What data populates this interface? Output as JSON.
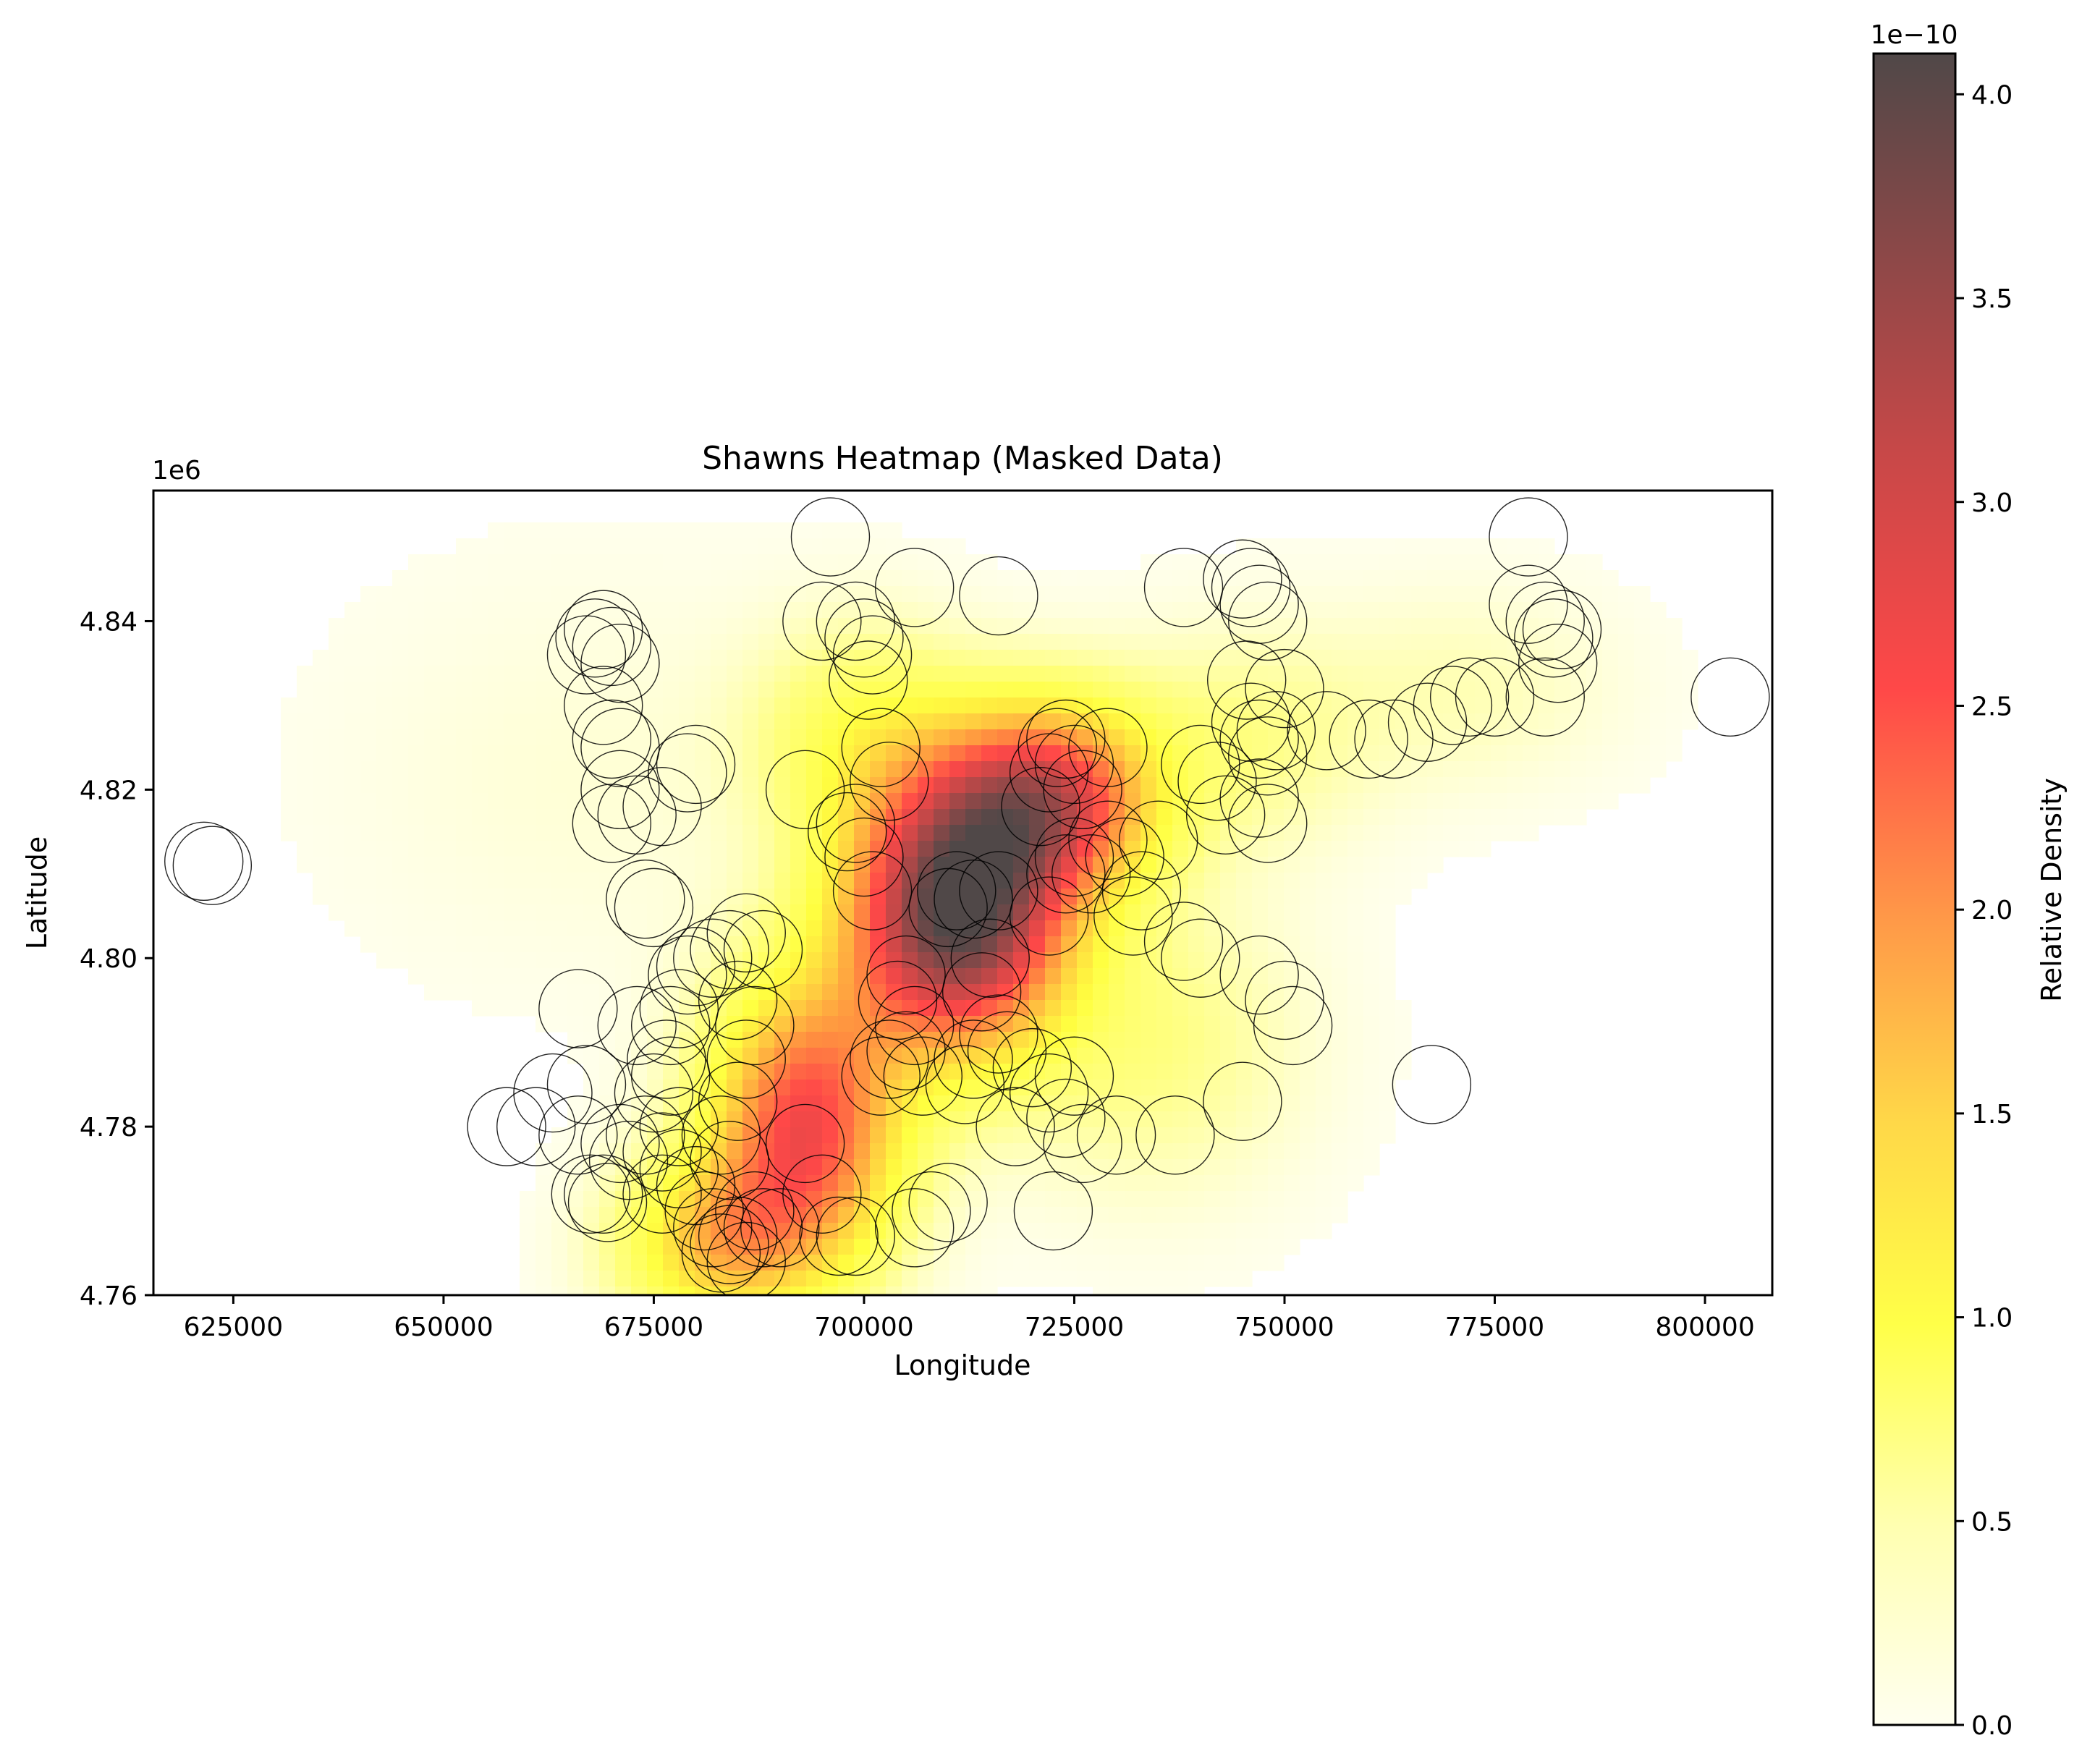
{
  "chart_data": {
    "type": "heatmap",
    "title": "Shawns Heatmap (Masked Data)",
    "xlabel": "Longitude",
    "ylabel": "Latitude",
    "xlim": [
      615500,
      808000
    ],
    "ylim": [
      4760000,
      4855500
    ],
    "y_offset_label": "1e6",
    "x_ticks": [
      625000,
      650000,
      675000,
      700000,
      725000,
      750000,
      775000,
      800000
    ],
    "x_tick_labels": [
      "625000",
      "650000",
      "675000",
      "700000",
      "725000",
      "750000",
      "775000",
      "800000"
    ],
    "y_ticks": [
      4760000,
      4780000,
      4800000,
      4820000,
      4840000
    ],
    "y_tick_labels": [
      "4.76",
      "4.78",
      "4.80",
      "4.82",
      "4.84"
    ],
    "colorbar": {
      "label": "Relative Density",
      "offset_label": "1e−10",
      "range": [
        0,
        4.1
      ],
      "ticks": [
        0,
        0.5,
        1.0,
        1.5,
        2.0,
        2.5,
        3.0,
        3.5,
        4.0
      ],
      "tick_labels": [
        "0.0",
        "0.5",
        "1.0",
        "1.5",
        "2.0",
        "2.5",
        "3.0",
        "3.5",
        "4.0"
      ],
      "colormap": [
        "#fffff0",
        "#ffff80",
        "#ffff40",
        "#ffd040",
        "#ff9040",
        "#ff4848",
        "#c84848",
        "#8c4848",
        "#504848"
      ]
    },
    "density_peaks": [
      {
        "x": 711000,
        "y": 4805000,
        "sx": 9000,
        "sy": 11000,
        "w": 4.0
      },
      {
        "x": 722000,
        "y": 4819000,
        "sx": 9000,
        "sy": 8000,
        "w": 2.6
      },
      {
        "x": 693000,
        "y": 4780000,
        "sx": 8000,
        "sy": 12000,
        "w": 2.6
      },
      {
        "x": 682000,
        "y": 4766000,
        "sx": 8000,
        "sy": 7000,
        "w": 1.4
      },
      {
        "x": 700000,
        "y": 4826000,
        "sx": 9000,
        "sy": 9000,
        "w": 0.8
      },
      {
        "x": 745000,
        "y": 4826000,
        "sx": 11000,
        "sy": 9000,
        "w": 0.45
      },
      {
        "x": 772000,
        "y": 4832000,
        "sx": 12000,
        "sy": 8000,
        "w": 0.25
      },
      {
        "x": 668000,
        "y": 4822000,
        "sx": 20000,
        "sy": 16000,
        "w": 0.12
      },
      {
        "x": 734000,
        "y": 4790000,
        "sx": 12000,
        "sy": 12000,
        "w": 0.5
      }
    ],
    "points": [
      [
        621500,
        4811500
      ],
      [
        622500,
        4811000
      ],
      [
        657500,
        4780000
      ],
      [
        661000,
        4780000
      ],
      [
        663000,
        4784000
      ],
      [
        666000,
        4779000
      ],
      [
        667000,
        4785000
      ],
      [
        666000,
        4794000
      ],
      [
        667500,
        4772000
      ],
      [
        669000,
        4772000
      ],
      [
        669500,
        4771000
      ],
      [
        671000,
        4778000
      ],
      [
        672000,
        4776000
      ],
      [
        673000,
        4792000
      ],
      [
        674000,
        4779000
      ],
      [
        675000,
        4784000
      ],
      [
        676000,
        4777000
      ],
      [
        677000,
        4786000
      ],
      [
        678000,
        4780000
      ],
      [
        676000,
        4772000
      ],
      [
        677000,
        4792000
      ],
      [
        678000,
        4794000
      ],
      [
        679000,
        4798000
      ],
      [
        680000,
        4799000
      ],
      [
        682000,
        4800000
      ],
      [
        676500,
        4788000
      ],
      [
        678000,
        4775000
      ],
      [
        680000,
        4773000
      ],
      [
        681000,
        4770000
      ],
      [
        682000,
        4768000
      ],
      [
        683000,
        4765000
      ],
      [
        684000,
        4766000
      ],
      [
        685000,
        4767000
      ],
      [
        686000,
        4764000
      ],
      [
        687000,
        4770000
      ],
      [
        688000,
        4768000
      ],
      [
        683000,
        4779000
      ],
      [
        684000,
        4776000
      ],
      [
        685000,
        4783000
      ],
      [
        686000,
        4788000
      ],
      [
        685000,
        4795000
      ],
      [
        687000,
        4792000
      ],
      [
        686000,
        4803000
      ],
      [
        688000,
        4801000
      ],
      [
        684000,
        4801000
      ],
      [
        690000,
        4768000
      ],
      [
        693000,
        4778000
      ],
      [
        695000,
        4772000
      ],
      [
        697000,
        4767000
      ],
      [
        699000,
        4767000
      ],
      [
        702000,
        4786000
      ],
      [
        703000,
        4788000
      ],
      [
        705000,
        4789000
      ],
      [
        706000,
        4792000
      ],
      [
        707000,
        4786000
      ],
      [
        705000,
        4798000
      ],
      [
        704000,
        4795000
      ],
      [
        706000,
        4768000
      ],
      [
        708000,
        4770000
      ],
      [
        710000,
        4771000
      ],
      [
        712000,
        4785000
      ],
      [
        713000,
        4788000
      ],
      [
        714000,
        4796000
      ],
      [
        715000,
        4800000
      ],
      [
        716000,
        4791000
      ],
      [
        717000,
        4789000
      ],
      [
        710000,
        4806000
      ],
      [
        711000,
        4808000
      ],
      [
        713000,
        4807000
      ],
      [
        716000,
        4808000
      ],
      [
        718000,
        4780000
      ],
      [
        720000,
        4787000
      ],
      [
        722000,
        4784000
      ],
      [
        722500,
        4770000
      ],
      [
        724000,
        4781000
      ],
      [
        725000,
        4786000
      ],
      [
        726000,
        4778000
      ],
      [
        730000,
        4779000
      ],
      [
        737000,
        4779000
      ],
      [
        745000,
        4783000
      ],
      [
        722000,
        4805000
      ],
      [
        724000,
        4810000
      ],
      [
        725000,
        4812000
      ],
      [
        727000,
        4810000
      ],
      [
        729000,
        4814000
      ],
      [
        731000,
        4812000
      ],
      [
        732000,
        4805000
      ],
      [
        733000,
        4808000
      ],
      [
        735000,
        4814000
      ],
      [
        738000,
        4802000
      ],
      [
        740000,
        4800000
      ],
      [
        721000,
        4818000
      ],
      [
        722000,
        4822000
      ],
      [
        723000,
        4825000
      ],
      [
        724000,
        4826000
      ],
      [
        725000,
        4823000
      ],
      [
        726000,
        4820000
      ],
      [
        729000,
        4825000
      ],
      [
        698000,
        4815000
      ],
      [
        699000,
        4816000
      ],
      [
        700000,
        4812000
      ],
      [
        701000,
        4808000
      ],
      [
        703000,
        4821000
      ],
      [
        702000,
        4825000
      ],
      [
        693000,
        4820000
      ],
      [
        695000,
        4840000
      ],
      [
        699000,
        4840000
      ],
      [
        700000,
        4838000
      ],
      [
        701000,
        4836000
      ],
      [
        700500,
        4833000
      ],
      [
        696000,
        4850000
      ],
      [
        706000,
        4844000
      ],
      [
        716000,
        4843000
      ],
      [
        738000,
        4844000
      ],
      [
        745000,
        4845000
      ],
      [
        746000,
        4844000
      ],
      [
        747000,
        4842000
      ],
      [
        748000,
        4840000
      ],
      [
        745500,
        4833000
      ],
      [
        746000,
        4828000
      ],
      [
        747000,
        4826000
      ],
      [
        748000,
        4824000
      ],
      [
        749000,
        4827000
      ],
      [
        750000,
        4832000
      ],
      [
        748000,
        4816000
      ],
      [
        747000,
        4819000
      ],
      [
        742000,
        4821000
      ],
      [
        740000,
        4823000
      ],
      [
        743000,
        4817000
      ],
      [
        747000,
        4798000
      ],
      [
        750000,
        4795000
      ],
      [
        751000,
        4792000
      ],
      [
        755000,
        4827000
      ],
      [
        760000,
        4826000
      ],
      [
        763000,
        4826000
      ],
      [
        767000,
        4828000
      ],
      [
        770000,
        4830000
      ],
      [
        772000,
        4831000
      ],
      [
        775000,
        4831000
      ],
      [
        767500,
        4785000
      ],
      [
        779000,
        4850000
      ],
      [
        779000,
        4842000
      ],
      [
        781000,
        4840000
      ],
      [
        782000,
        4838000
      ],
      [
        782500,
        4835000
      ],
      [
        783000,
        4839000
      ],
      [
        781000,
        4831000
      ],
      [
        803000,
        4831000
      ],
      [
        667000,
        4836000
      ],
      [
        668000,
        4838000
      ],
      [
        669000,
        4839000
      ],
      [
        670000,
        4837000
      ],
      [
        671000,
        4835000
      ],
      [
        669000,
        4830000
      ],
      [
        670000,
        4826000
      ],
      [
        671000,
        4825000
      ],
      [
        670000,
        4816000
      ],
      [
        671000,
        4820000
      ],
      [
        673000,
        4817000
      ],
      [
        674000,
        4807000
      ],
      [
        675000,
        4806000
      ],
      [
        676000,
        4818000
      ],
      [
        679000,
        4822000
      ],
      [
        680000,
        4823000
      ]
    ],
    "grid": false
  }
}
